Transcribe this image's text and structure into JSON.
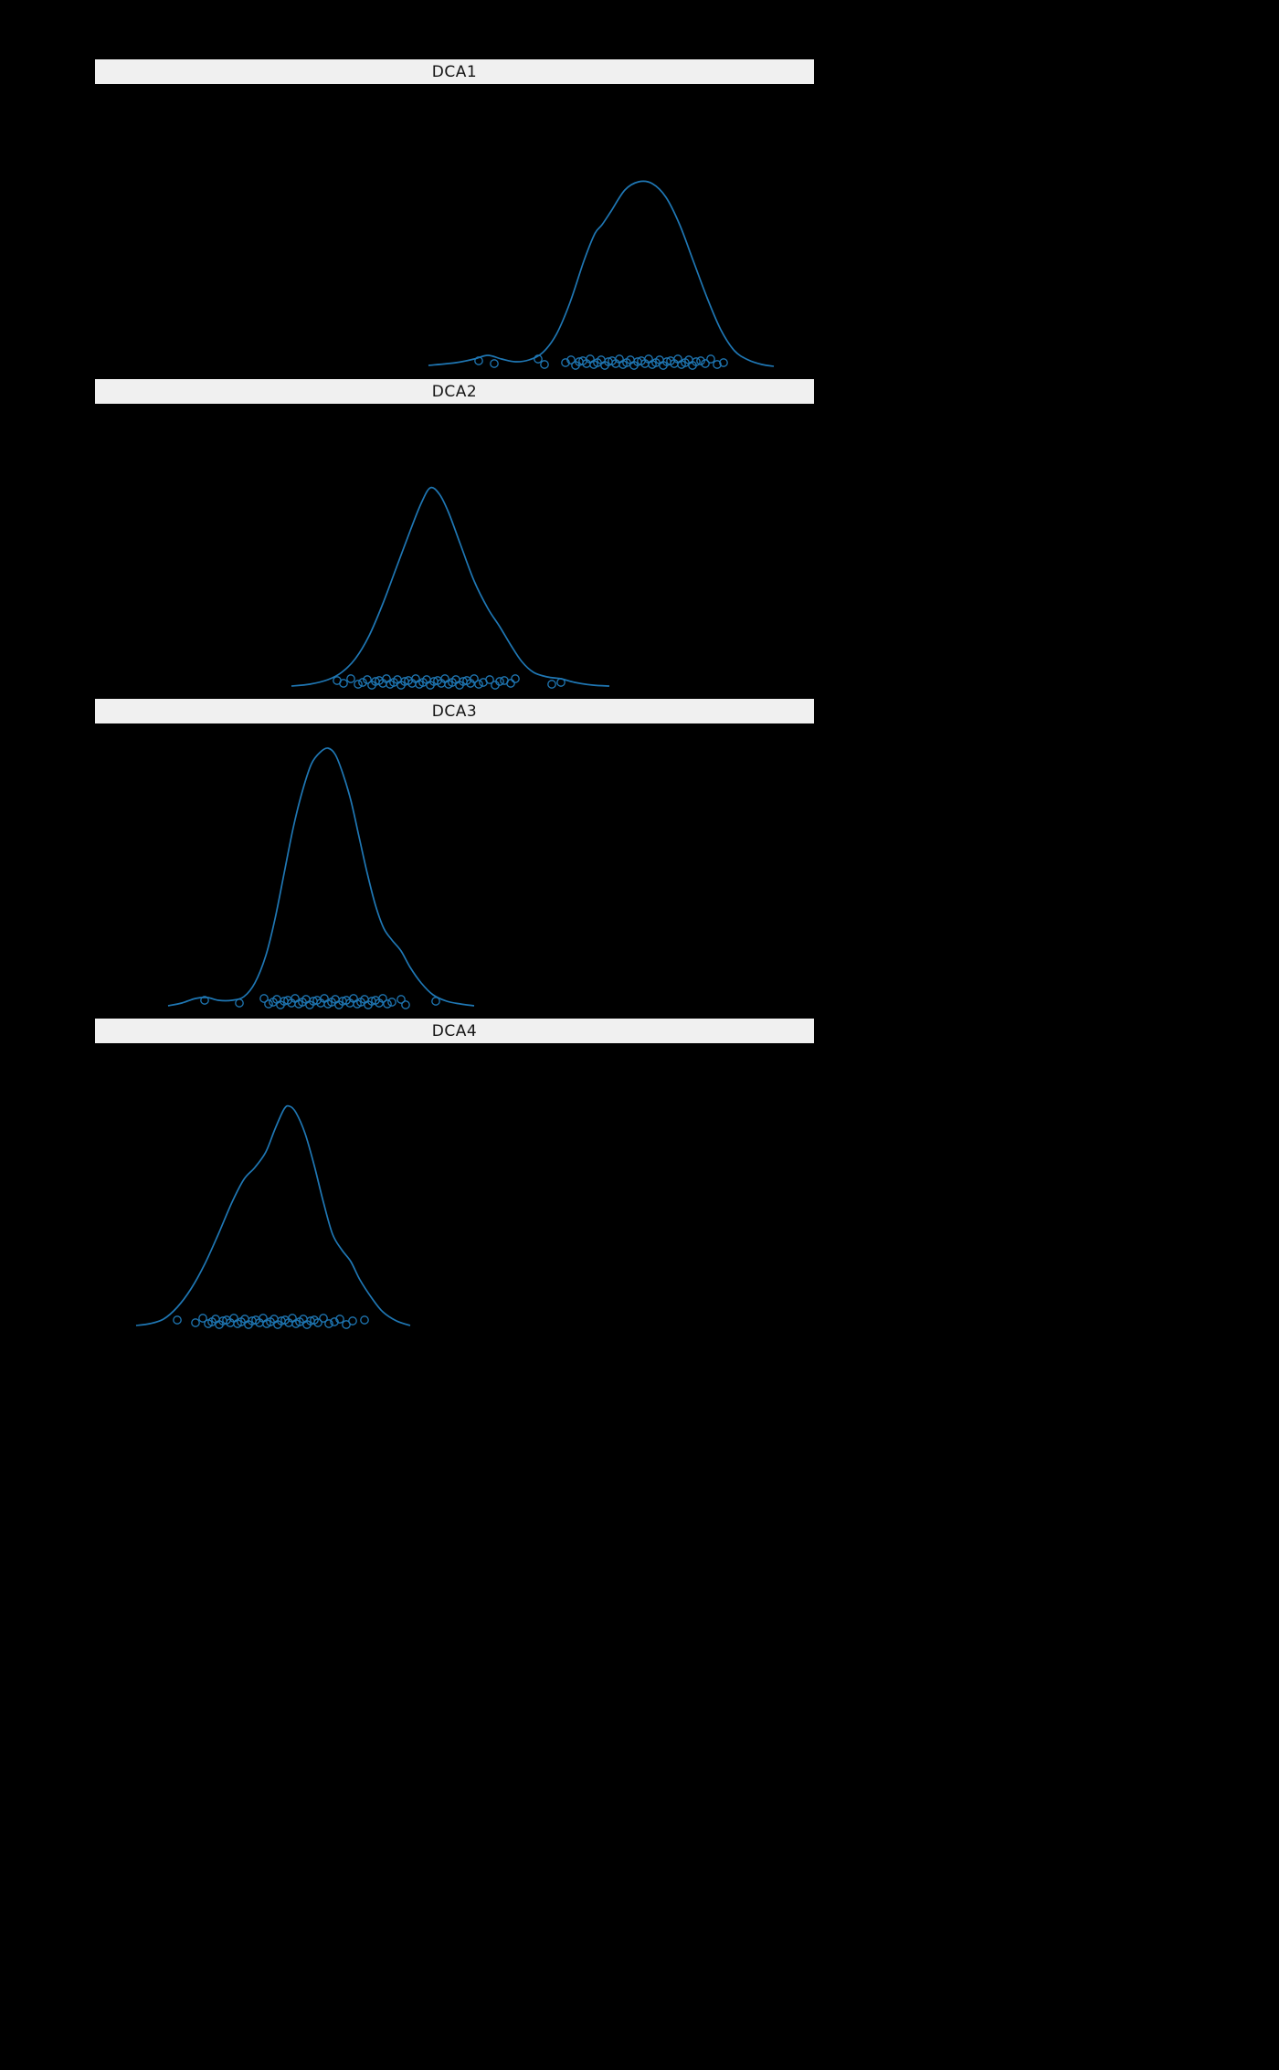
{
  "figure": {
    "background": "#000000",
    "strip_background": "#f0f0f0",
    "strip_text_color": "#141414",
    "line_color": "#1f77b4",
    "marker_color": "#1f77b4",
    "marker_style": "open-circle",
    "axes_tick_labels_visible": false
  },
  "chart_data": [
    {
      "type": "kde",
      "title": "DCA1",
      "xlabel": "",
      "ylabel": "",
      "coords": "facet-local-px",
      "baseline": 309,
      "curve": [
        [
          365,
          1
        ],
        [
          395,
          4
        ],
        [
          415,
          8
        ],
        [
          430,
          12
        ],
        [
          445,
          8
        ],
        [
          460,
          5
        ],
        [
          475,
          7
        ],
        [
          490,
          15
        ],
        [
          505,
          35
        ],
        [
          520,
          70
        ],
        [
          535,
          115
        ],
        [
          547,
          145
        ],
        [
          555,
          155
        ],
        [
          565,
          170
        ],
        [
          580,
          193
        ],
        [
          595,
          202
        ],
        [
          610,
          200
        ],
        [
          625,
          185
        ],
        [
          640,
          155
        ],
        [
          655,
          115
        ],
        [
          670,
          75
        ],
        [
          685,
          40
        ],
        [
          700,
          17
        ],
        [
          715,
          7
        ],
        [
          730,
          2
        ],
        [
          743,
          0
        ]
      ],
      "points": [
        [
          420,
          -2
        ],
        [
          437,
          1
        ],
        [
          485,
          -4
        ],
        [
          492,
          2
        ],
        [
          515,
          0
        ],
        [
          521,
          -3
        ],
        [
          526,
          3
        ],
        [
          530,
          -1
        ],
        [
          534,
          -2
        ],
        [
          538,
          1
        ],
        [
          542,
          -4
        ],
        [
          546,
          2
        ],
        [
          550,
          0
        ],
        [
          554,
          -3
        ],
        [
          558,
          3
        ],
        [
          562,
          -1
        ],
        [
          566,
          -2
        ],
        [
          570,
          1
        ],
        [
          574,
          -4
        ],
        [
          578,
          2
        ],
        [
          582,
          0
        ],
        [
          586,
          -3
        ],
        [
          590,
          3
        ],
        [
          594,
          -1
        ],
        [
          598,
          -2
        ],
        [
          602,
          1
        ],
        [
          606,
          -4
        ],
        [
          610,
          2
        ],
        [
          614,
          0
        ],
        [
          618,
          -3
        ],
        [
          622,
          3
        ],
        [
          626,
          -1
        ],
        [
          630,
          -2
        ],
        [
          634,
          1
        ],
        [
          638,
          -4
        ],
        [
          642,
          2
        ],
        [
          646,
          0
        ],
        [
          650,
          -3
        ],
        [
          654,
          3
        ],
        [
          658,
          -1
        ],
        [
          663,
          -2
        ],
        [
          668,
          1
        ],
        [
          674,
          -4
        ],
        [
          681,
          2
        ],
        [
          688,
          0
        ]
      ]
    },
    {
      "type": "kde",
      "title": "DCA2",
      "xlabel": "",
      "ylabel": "",
      "coords": "facet-local-px",
      "baseline": 309,
      "curve": [
        [
          215,
          0
        ],
        [
          235,
          2
        ],
        [
          255,
          7
        ],
        [
          270,
          15
        ],
        [
          285,
          30
        ],
        [
          300,
          55
        ],
        [
          315,
          90
        ],
        [
          330,
          130
        ],
        [
          345,
          170
        ],
        [
          357,
          200
        ],
        [
          367,
          217
        ],
        [
          377,
          210
        ],
        [
          387,
          190
        ],
        [
          400,
          155
        ],
        [
          415,
          115
        ],
        [
          430,
          85
        ],
        [
          443,
          65
        ],
        [
          455,
          45
        ],
        [
          467,
          27
        ],
        [
          480,
          15
        ],
        [
          495,
          10
        ],
        [
          510,
          8
        ],
        [
          525,
          4
        ],
        [
          545,
          1
        ],
        [
          563,
          0
        ]
      ],
      "points": [
        [
          265,
          -2
        ],
        [
          272,
          1
        ],
        [
          280,
          -4
        ],
        [
          288,
          2
        ],
        [
          293,
          0
        ],
        [
          298,
          -3
        ],
        [
          303,
          3
        ],
        [
          307,
          -1
        ],
        [
          311,
          -2
        ],
        [
          315,
          1
        ],
        [
          319,
          -4
        ],
        [
          323,
          2
        ],
        [
          327,
          0
        ],
        [
          331,
          -3
        ],
        [
          335,
          3
        ],
        [
          339,
          -1
        ],
        [
          343,
          -2
        ],
        [
          347,
          1
        ],
        [
          351,
          -4
        ],
        [
          355,
          2
        ],
        [
          359,
          0
        ],
        [
          363,
          -3
        ],
        [
          367,
          3
        ],
        [
          371,
          -1
        ],
        [
          375,
          -2
        ],
        [
          379,
          1
        ],
        [
          383,
          -4
        ],
        [
          387,
          2
        ],
        [
          391,
          0
        ],
        [
          395,
          -3
        ],
        [
          399,
          3
        ],
        [
          403,
          -1
        ],
        [
          407,
          -2
        ],
        [
          411,
          1
        ],
        [
          415,
          -4
        ],
        [
          420,
          2
        ],
        [
          425,
          0
        ],
        [
          432,
          -3
        ],
        [
          438,
          3
        ],
        [
          443,
          -1
        ],
        [
          448,
          -2
        ],
        [
          455,
          1
        ],
        [
          460,
          -4
        ],
        [
          500,
          2
        ],
        [
          510,
          0
        ]
      ]
    },
    {
      "type": "kde",
      "title": "DCA3",
      "xlabel": "",
      "ylabel": "",
      "coords": "facet-local-px",
      "baseline": 309,
      "curve": [
        [
          80,
          0
        ],
        [
          95,
          3
        ],
        [
          110,
          8
        ],
        [
          123,
          9
        ],
        [
          135,
          6
        ],
        [
          150,
          6
        ],
        [
          163,
          10
        ],
        [
          175,
          25
        ],
        [
          187,
          55
        ],
        [
          197,
          95
        ],
        [
          207,
          145
        ],
        [
          217,
          195
        ],
        [
          227,
          235
        ],
        [
          237,
          265
        ],
        [
          247,
          278
        ],
        [
          255,
          282
        ],
        [
          263,
          275
        ],
        [
          271,
          255
        ],
        [
          280,
          225
        ],
        [
          289,
          185
        ],
        [
          298,
          145
        ],
        [
          307,
          110
        ],
        [
          316,
          85
        ],
        [
          325,
          72
        ],
        [
          335,
          60
        ],
        [
          345,
          42
        ],
        [
          357,
          25
        ],
        [
          370,
          12
        ],
        [
          385,
          5
        ],
        [
          400,
          2
        ],
        [
          415,
          0
        ]
      ],
      "points": [
        [
          120,
          -2
        ],
        [
          158,
          1
        ],
        [
          185,
          -4
        ],
        [
          190,
          2
        ],
        [
          195,
          0
        ],
        [
          199,
          -3
        ],
        [
          203,
          3
        ],
        [
          207,
          -1
        ],
        [
          211,
          -2
        ],
        [
          215,
          1
        ],
        [
          219,
          -4
        ],
        [
          223,
          2
        ],
        [
          227,
          0
        ],
        [
          231,
          -3
        ],
        [
          235,
          3
        ],
        [
          239,
          -1
        ],
        [
          243,
          -2
        ],
        [
          247,
          1
        ],
        [
          251,
          -4
        ],
        [
          255,
          2
        ],
        [
          259,
          0
        ],
        [
          263,
          -3
        ],
        [
          267,
          3
        ],
        [
          271,
          -1
        ],
        [
          275,
          -2
        ],
        [
          279,
          1
        ],
        [
          283,
          -4
        ],
        [
          287,
          2
        ],
        [
          291,
          0
        ],
        [
          295,
          -3
        ],
        [
          299,
          3
        ],
        [
          303,
          -1
        ],
        [
          307,
          -2
        ],
        [
          311,
          1
        ],
        [
          315,
          -4
        ],
        [
          320,
          2
        ],
        [
          325,
          0
        ],
        [
          335,
          -3
        ],
        [
          340,
          3
        ],
        [
          373,
          -1
        ]
      ]
    },
    {
      "type": "kde",
      "title": "DCA4",
      "xlabel": "",
      "ylabel": "",
      "coords": "facet-local-px",
      "baseline": 309,
      "curve": [
        [
          45,
          0
        ],
        [
          60,
          2
        ],
        [
          75,
          7
        ],
        [
          90,
          20
        ],
        [
          105,
          40
        ],
        [
          120,
          67
        ],
        [
          135,
          100
        ],
        [
          150,
          135
        ],
        [
          163,
          160
        ],
        [
          175,
          173
        ],
        [
          187,
          190
        ],
        [
          197,
          215
        ],
        [
          207,
          237
        ],
        [
          213,
          240
        ],
        [
          220,
          233
        ],
        [
          230,
          210
        ],
        [
          240,
          175
        ],
        [
          250,
          135
        ],
        [
          260,
          100
        ],
        [
          270,
          83
        ],
        [
          280,
          70
        ],
        [
          290,
          50
        ],
        [
          303,
          30
        ],
        [
          315,
          15
        ],
        [
          330,
          5
        ],
        [
          345,
          0
        ]
      ],
      "points": [
        [
          90,
          -2
        ],
        [
          110,
          1
        ],
        [
          118,
          -4
        ],
        [
          124,
          2
        ],
        [
          128,
          0
        ],
        [
          132,
          -3
        ],
        [
          136,
          3
        ],
        [
          140,
          -1
        ],
        [
          144,
          -2
        ],
        [
          148,
          1
        ],
        [
          152,
          -4
        ],
        [
          156,
          2
        ],
        [
          160,
          0
        ],
        [
          164,
          -3
        ],
        [
          168,
          3
        ],
        [
          172,
          -1
        ],
        [
          176,
          -2
        ],
        [
          180,
          1
        ],
        [
          184,
          -4
        ],
        [
          188,
          2
        ],
        [
          192,
          0
        ],
        [
          196,
          -3
        ],
        [
          200,
          3
        ],
        [
          204,
          -1
        ],
        [
          208,
          -2
        ],
        [
          212,
          1
        ],
        [
          216,
          -4
        ],
        [
          220,
          2
        ],
        [
          224,
          0
        ],
        [
          228,
          -3
        ],
        [
          232,
          3
        ],
        [
          236,
          -1
        ],
        [
          240,
          -2
        ],
        [
          244,
          1
        ],
        [
          250,
          -4
        ],
        [
          256,
          2
        ],
        [
          262,
          0
        ],
        [
          268,
          -3
        ],
        [
          275,
          3
        ],
        [
          282,
          -1
        ],
        [
          295,
          -2
        ]
      ]
    }
  ]
}
